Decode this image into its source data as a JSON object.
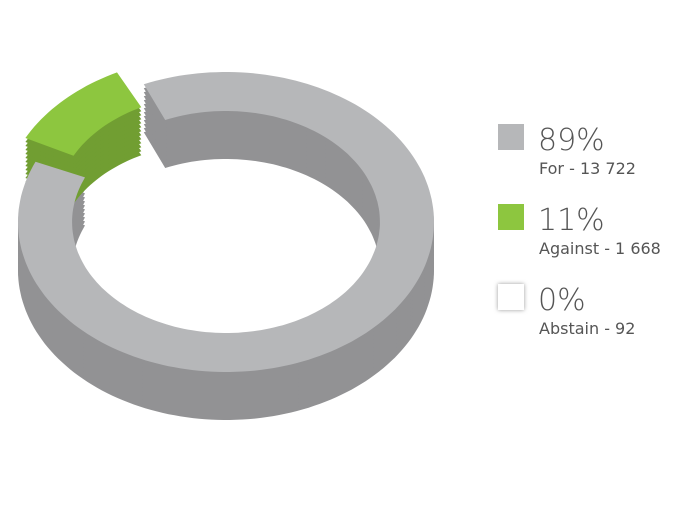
{
  "chart_data": {
    "type": "pie",
    "categories": [
      "For - 13 722",
      "Against - 1 668",
      "Abstain - 92"
    ],
    "values": [
      89,
      11,
      0
    ],
    "value_labels": [
      "89%",
      "11%",
      "0%"
    ],
    "colors": [
      "#b6b7b9",
      "#8dc63f",
      "#ffffff"
    ],
    "donut": true
  }
}
